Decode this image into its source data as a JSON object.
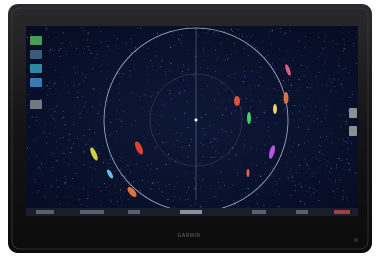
{
  "device": {
    "brand": "GARMIN"
  }
}
